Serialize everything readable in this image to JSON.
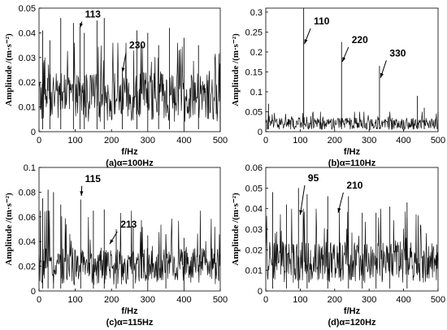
{
  "chart_data": [
    {
      "type": "line",
      "xlabel": "f/Hz",
      "ylabel": "Amplitude /(m·s⁻²)",
      "caption": "(a)α=100Hz",
      "xlim": [
        0,
        500
      ],
      "ylim": [
        0,
        0.05
      ],
      "xticks": [
        "0",
        "100",
        "200",
        "300",
        "400",
        "500"
      ],
      "yticks": [
        "0",
        "0.01",
        "0.02",
        "0.03",
        "0.04",
        "0.05"
      ],
      "yticks_v": [
        0,
        0.01,
        0.02,
        0.03,
        0.04,
        0.05
      ],
      "noise": {
        "base": 0.014,
        "spread": 0.02,
        "max": 0.036
      },
      "x": [
        10,
        30,
        60,
        95,
        113,
        125,
        160,
        180,
        230,
        270,
        300,
        330,
        360,
        400,
        440,
        500
      ],
      "y": [
        0.041,
        0.037,
        0.046,
        0.044,
        0.042,
        0.04,
        0.045,
        0.046,
        0.024,
        0.041,
        0.04,
        0.035,
        0.042,
        0.038,
        0.035,
        0.032
      ],
      "annotations": [
        {
          "text": "113",
          "x": 113,
          "y": 0.042,
          "tx": 118,
          "ty": 0.0455
        },
        {
          "text": "230",
          "x": 230,
          "y": 0.024,
          "tx": 240,
          "ty": 0.033
        }
      ]
    },
    {
      "type": "line",
      "xlabel": "f/Hz",
      "ylabel": "Amplitude /(m·s⁻²)",
      "caption": "(b)α=110Hz",
      "xlim": [
        0,
        500
      ],
      "ylim": [
        0,
        0.31
      ],
      "xticks": [
        "0",
        "100",
        "200",
        "300",
        "400",
        "500"
      ],
      "yticks": [
        "0",
        "0.05",
        "0.1",
        "0.15",
        "0.2",
        "0.25",
        "0.3"
      ],
      "yticks_v": [
        0,
        0.05,
        0.1,
        0.15,
        0.2,
        0.25,
        0.3
      ],
      "noise": {
        "base": 0.02,
        "spread": 0.03,
        "max": 0.05
      },
      "x": [
        8,
        110,
        220,
        330,
        440,
        460
      ],
      "y": [
        0.07,
        0.31,
        0.225,
        0.165,
        0.09,
        0.06
      ],
      "annotations": [
        {
          "text": "110",
          "x": 112,
          "y": 0.22,
          "tx": 130,
          "ty": 0.265
        },
        {
          "text": "220",
          "x": 222,
          "y": 0.175,
          "tx": 240,
          "ty": 0.218
        },
        {
          "text": "330",
          "x": 333,
          "y": 0.135,
          "tx": 350,
          "ty": 0.185
        }
      ]
    },
    {
      "type": "line",
      "xlabel": "f/Hz",
      "ylabel": "Amplitude /(m·s⁻²)",
      "caption": "(c)α=115Hz",
      "xlim": [
        0,
        500
      ],
      "ylim": [
        0,
        0.1
      ],
      "xticks": [
        "0",
        "100",
        "200",
        "300",
        "400",
        "500"
      ],
      "yticks": [
        "0",
        "0.02",
        "0.04",
        "0.06",
        "0.08",
        "0.1"
      ],
      "yticks_v": [
        0,
        0.02,
        0.04,
        0.06,
        0.08,
        0.1
      ],
      "noise": {
        "base": 0.02,
        "spread": 0.03,
        "max": 0.065
      },
      "x": [
        10,
        25,
        40,
        60,
        115,
        150,
        180,
        213,
        260,
        300,
        350,
        400
      ],
      "y": [
        0.075,
        0.082,
        0.08,
        0.07,
        0.074,
        0.065,
        0.066,
        0.05,
        0.052,
        0.045,
        0.046,
        0.043
      ],
      "annotations": [
        {
          "text": "115",
          "x": 117,
          "y": 0.077,
          "tx": 118,
          "ty": 0.087
        },
        {
          "text": "213",
          "x": 195,
          "y": 0.038,
          "tx": 216,
          "ty": 0.05
        }
      ]
    },
    {
      "type": "line",
      "xlabel": "f/Hz",
      "ylabel": "Amplitude /(m·s⁻²)",
      "caption": "(d)α=120Hz",
      "xlim": [
        0,
        500
      ],
      "ylim": [
        0,
        0.06
      ],
      "xticks": [
        "0",
        "100",
        "200",
        "300",
        "400",
        "500"
      ],
      "yticks": [
        "0",
        "0.01",
        "0.02",
        "0.03",
        "0.04",
        "0.05",
        "0.06"
      ],
      "yticks_v": [
        0,
        0.01,
        0.02,
        0.03,
        0.04,
        0.05,
        0.06
      ],
      "noise": {
        "base": 0.014,
        "spread": 0.02,
        "max": 0.04
      },
      "x": [
        20,
        60,
        95,
        120,
        180,
        240,
        280,
        320,
        360,
        410
      ],
      "y": [
        0.048,
        0.042,
        0.05,
        0.047,
        0.046,
        0.046,
        0.038,
        0.038,
        0.041,
        0.043
      ],
      "annotations": [
        {
          "text": "95",
          "x": 100,
          "y": 0.037,
          "tx": 113,
          "ty": 0.0525
        },
        {
          "text": "210",
          "x": 210,
          "y": 0.038,
          "tx": 225,
          "ty": 0.049
        }
      ]
    }
  ]
}
